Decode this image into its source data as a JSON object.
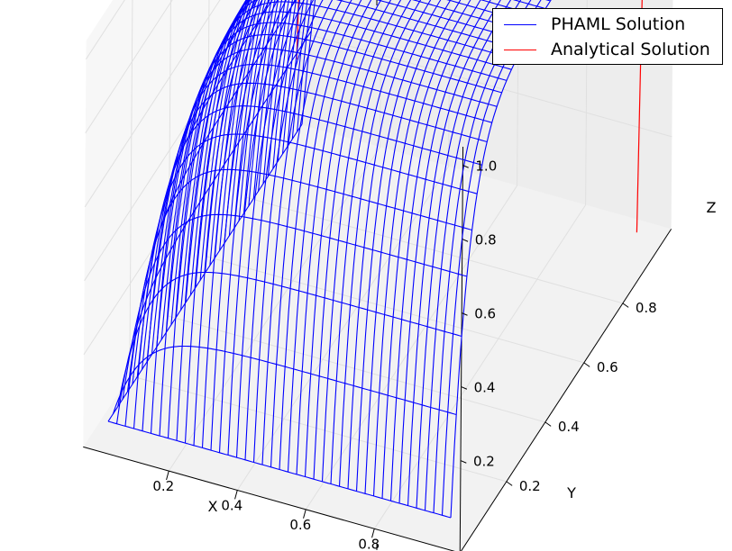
{
  "chart_data": {
    "type": "surface3d-wireframe",
    "title": "",
    "xlabel": "X",
    "ylabel": "Y",
    "zlabel": "Z",
    "xlim": [
      0.0,
      1.0
    ],
    "ylim": [
      0.0,
      1.0
    ],
    "zlim": [
      0.0,
      1.0
    ],
    "x_ticks": [
      "0.2",
      "0.4",
      "0.6",
      "0.8"
    ],
    "y_ticks": [
      "0.2",
      "0.4",
      "0.6",
      "0.8"
    ],
    "z_ticks": [
      "0.2",
      "0.4",
      "0.6",
      "0.8",
      "1.0"
    ],
    "grid": true,
    "legend_position": "top-right",
    "grid_lines_per_axis": 41,
    "series": [
      {
        "name": "PHAML Solution",
        "color": "#0000ff"
      },
      {
        "name": "Analytical Solution",
        "color": "#ff0000"
      }
    ]
  }
}
